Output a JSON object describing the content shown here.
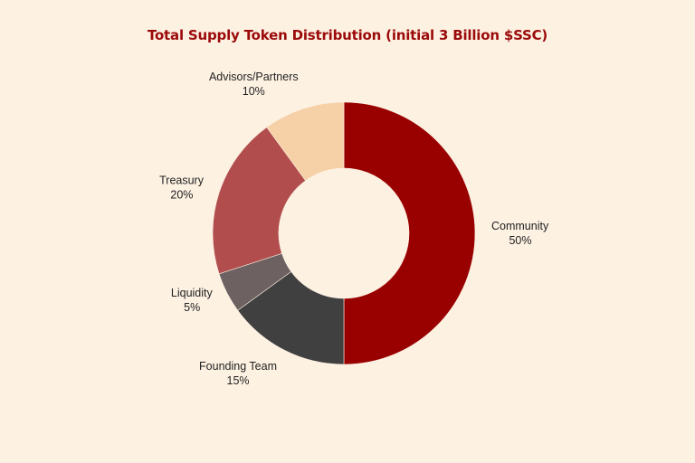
{
  "chart_data": {
    "type": "pie",
    "donut": true,
    "title": "Total Supply Token Distribution (initial 3 Billion $SSC)",
    "slices": [
      {
        "label": "Community",
        "value": 50,
        "value_label": "50%",
        "color": "#990000"
      },
      {
        "label": "Founding Team",
        "value": 15,
        "value_label": "15%",
        "color": "#404040"
      },
      {
        "label": "Liquidity",
        "value": 5,
        "value_label": "5%",
        "color": "#6d6161"
      },
      {
        "label": "Treasury",
        "value": 20,
        "value_label": "20%",
        "color": "#b14d4d"
      },
      {
        "label": "Advisors/Partners",
        "value": 10,
        "value_label": "10%",
        "color": "#f6d1a8"
      }
    ],
    "background": "#fdf1e2",
    "title_color": "#9b0a0a"
  }
}
